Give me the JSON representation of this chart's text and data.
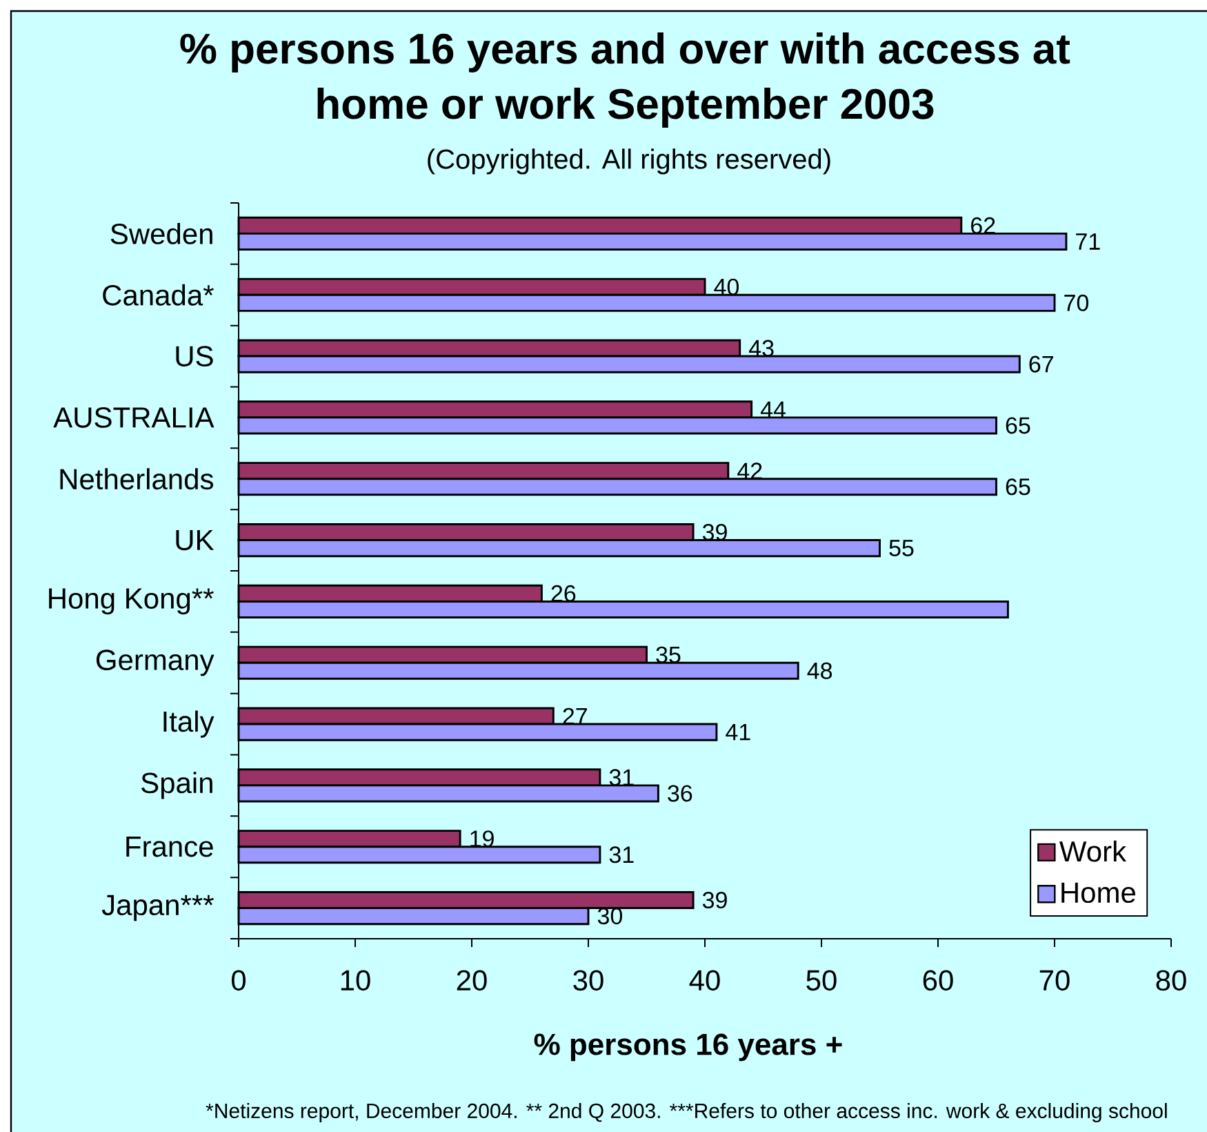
{
  "chart_data": {
    "type": "bar",
    "orientation": "horizontal",
    "title": "% persons 16 years and over with access at home or work September 2003",
    "subtitle": "(Copyrighted. All rights reserved)",
    "xlabel": "% persons 16 years +",
    "categories": [
      "Sweden",
      "Canada*",
      "US",
      "AUSTRALIA",
      "Netherlands",
      "UK",
      "Hong Kong**",
      "Germany",
      "Italy",
      "Spain",
      "France",
      "Japan***"
    ],
    "series": [
      {
        "name": "Work",
        "color": "#993366",
        "values": [
          62,
          40,
          43,
          44,
          42,
          39,
          26,
          35,
          27,
          31,
          19,
          39
        ],
        "value_labels": [
          "62",
          "40",
          "43",
          "44",
          "42",
          "39",
          "26",
          "35",
          "27",
          "31",
          "19",
          "39"
        ]
      },
      {
        "name": "Home",
        "color": "#9999ff",
        "values": [
          71,
          70,
          67,
          65,
          65,
          55,
          66,
          48,
          41,
          36,
          31,
          30
        ],
        "value_labels": [
          "71",
          "70",
          "67",
          "65",
          "65",
          "55",
          null,
          "48",
          "41",
          "36",
          "31",
          "30"
        ]
      }
    ],
    "xlim": [
      0,
      80
    ],
    "xticks": [
      0,
      10,
      20,
      30,
      40,
      50,
      60,
      70,
      80
    ],
    "legend": "bottom right",
    "annotations": [
      "*Netizens report, December 2004. ** 2nd Q 2003. ***Refers to other access inc. work & excluding school"
    ]
  }
}
